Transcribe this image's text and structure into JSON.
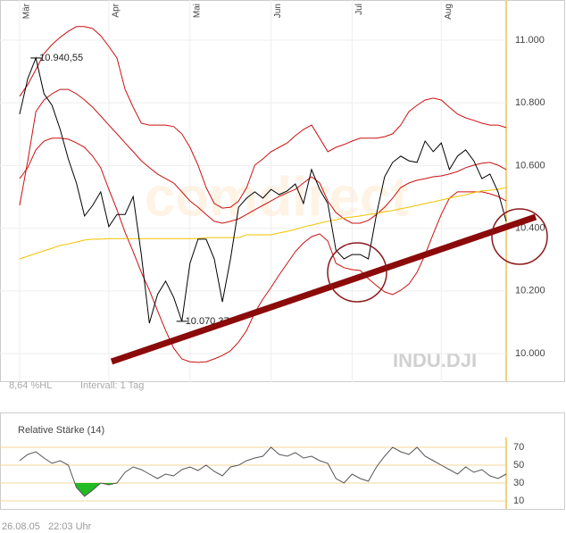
{
  "chart_data": {
    "type": "line",
    "title": "INDU.DJI",
    "watermark": "comdirect",
    "categories": [
      "Mär",
      null,
      null,
      null,
      null,
      null,
      null,
      null,
      null,
      null,
      null,
      "Apr",
      null,
      null,
      null,
      null,
      null,
      null,
      null,
      null,
      null,
      "Mai",
      null,
      null,
      null,
      null,
      null,
      null,
      null,
      null,
      null,
      "Jun",
      null,
      null,
      null,
      null,
      null,
      null,
      null,
      null,
      null,
      "Jul",
      null,
      null,
      null,
      null,
      null,
      null,
      null,
      null,
      null,
      null,
      "Aug",
      null,
      null,
      null,
      null,
      null,
      null,
      null,
      null
    ],
    "series": [
      {
        "color": "#cc1111",
        "values": [
          10821,
          10858,
          10906,
          10957,
          10986,
          11009,
          11028,
          11043,
          11043,
          11037,
          11014,
          10980,
          10943,
          10843,
          10786,
          10735,
          10729,
          10729,
          10729,
          10724,
          10701,
          10658,
          10601,
          10530,
          10479,
          10464,
          10467,
          10487,
          10530,
          10601,
          10621,
          10644,
          10658,
          10672,
          10695,
          10715,
          10729,
          10687,
          10644,
          10658,
          10667,
          10678,
          10687,
          10687,
          10687,
          10692,
          10701,
          10729,
          10772,
          10792,
          10809,
          10815,
          10809,
          10786,
          10764,
          10752,
          10744,
          10735,
          10729,
          10729,
          10721
        ]
      },
      {
        "color": "#cc1111",
        "values": [
          10473,
          10615,
          10772,
          10809,
          10829,
          10843,
          10843,
          10829,
          10809,
          10786,
          10758,
          10729,
          10701,
          10672,
          10644,
          10615,
          10593,
          10573,
          10558,
          10544,
          10516,
          10487,
          10467,
          10444,
          10422,
          10416,
          10422,
          10430,
          10444,
          10459,
          10473,
          10487,
          10501,
          10513,
          10524,
          10544,
          10564,
          10544,
          10487,
          10450,
          10430,
          10416,
          10416,
          10425,
          10444,
          10467,
          10496,
          10530,
          10544,
          10553,
          10558,
          10564,
          10567,
          10573,
          10581,
          10593,
          10601,
          10607,
          10610,
          10601,
          10587
        ]
      },
      {
        "color": "#cc1111",
        "values": [
          10558,
          10593,
          10650,
          10678,
          10687,
          10687,
          10684,
          10672,
          10658,
          10630,
          10593,
          10524,
          10459,
          10387,
          10325,
          10259,
          10202,
          10137,
          10074,
          10017,
          9983,
          9974,
          9972,
          9974,
          9983,
          9994,
          10009,
          10037,
          10074,
          10131,
          10174,
          10211,
          10251,
          10288,
          10325,
          10353,
          10373,
          10382,
          10359,
          10288,
          10274,
          10268,
          10265,
          10239,
          10217,
          10197,
          10188,
          10202,
          10222,
          10259,
          10316,
          10382,
          10444,
          10496,
          10516,
          10516,
          10516,
          10516,
          10510,
          10501,
          10487
        ]
      },
      {
        "color": "#f2c200",
        "values": [
          10302,
          10311,
          10319,
          10328,
          10336,
          10345,
          10350,
          10356,
          10362,
          10365,
          10365,
          10367,
          10367,
          10367,
          10367,
          10367,
          10367,
          10367,
          10367,
          10367,
          10367,
          10367,
          10367,
          10370,
          10370,
          10370,
          10370,
          10370,
          10379,
          10379,
          10379,
          10379,
          10385,
          10390,
          10396,
          10404,
          10410,
          10416,
          10422,
          10427,
          10433,
          10436,
          10439,
          10444,
          10447,
          10453,
          10456,
          10462,
          10467,
          10473,
          10479,
          10484,
          10490,
          10496,
          10501,
          10507,
          10513,
          10519,
          10521,
          10524,
          10530
        ]
      },
      {
        "color": "#000000",
        "values": [
          10764,
          10877,
          10943,
          10829,
          10792,
          10715,
          10621,
          10544,
          10439,
          10473,
          10516,
          10405,
          10444,
          10444,
          10501,
          10316,
          10097,
          10188,
          10231,
          10179,
          10103,
          10288,
          10365,
          10365,
          10302,
          10165,
          10302,
          10467,
          10496,
          10516,
          10496,
          10524,
          10507,
          10519,
          10541,
          10479,
          10587,
          10524,
          10479,
          10330,
          10302,
          10316,
          10316,
          10302,
          10444,
          10564,
          10610,
          10630,
          10615,
          10610,
          10678,
          10644,
          10672,
          10587,
          10630,
          10650,
          10615,
          10558,
          10573,
          10516,
          10422
        ]
      }
    ],
    "ylim": [
      9909,
      11128
    ],
    "yticks": [
      {
        "value": 10000,
        "label": "10.000"
      },
      {
        "value": 10200,
        "label": "10.200"
      },
      {
        "value": 10400,
        "label": "10.400"
      },
      {
        "value": 10600,
        "label": "10.600"
      },
      {
        "value": 10800,
        "label": "10.800"
      },
      {
        "value": 11000,
        "label": "11.000"
      }
    ],
    "grid": true,
    "annotations": [
      {
        "text": "10.940,55",
        "index": 2
      },
      {
        "text": "10.070,37",
        "index": 20
      }
    ],
    "footer_left": "8,64 %HL",
    "footer_interval": "Intervall: 1 Tag",
    "indicator": {
      "title": "Relative Stärke (14)",
      "color": "#555555",
      "fill_color": "#22bb22",
      "values": [
        55,
        62,
        65,
        58,
        52,
        55,
        50,
        25,
        15,
        22,
        30,
        28,
        30,
        42,
        48,
        45,
        40,
        35,
        40,
        38,
        45,
        48,
        44,
        50,
        43,
        38,
        48,
        50,
        55,
        58,
        60,
        70,
        62,
        60,
        64,
        58,
        60,
        55,
        52,
        35,
        30,
        40,
        35,
        32,
        48,
        60,
        70,
        65,
        62,
        70,
        60,
        55,
        50,
        45,
        40,
        48,
        42,
        45,
        38,
        35,
        40
      ],
      "threshold": 30,
      "ylim": [
        1,
        77
      ],
      "yticks": [
        70,
        50,
        30,
        10
      ]
    },
    "timestamp": "26.08.05   22:03 Uhr"
  }
}
